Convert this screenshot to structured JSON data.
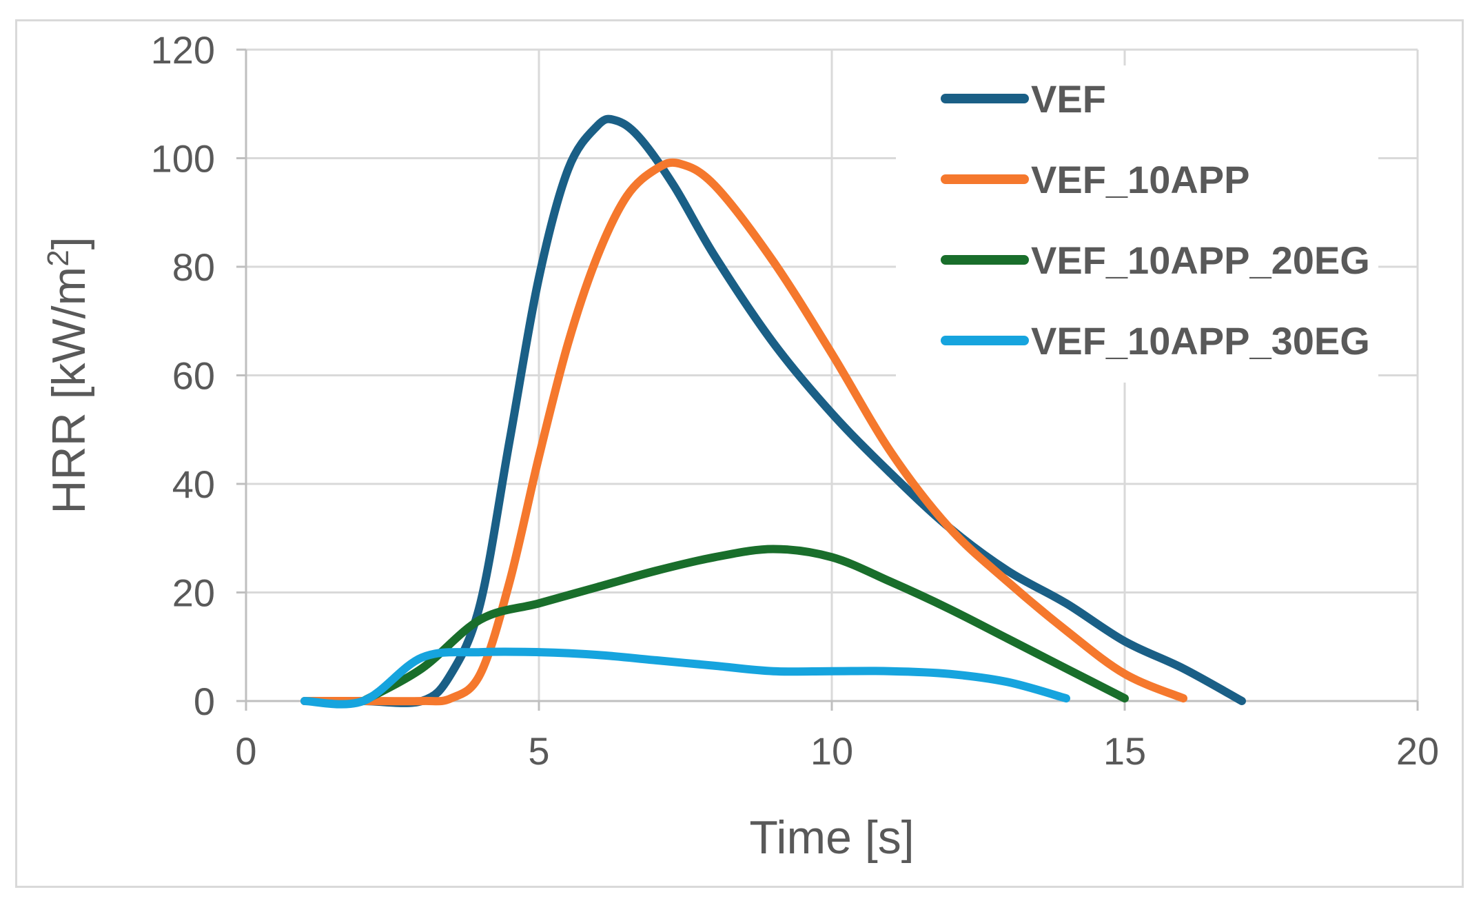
{
  "chart_data": {
    "type": "line",
    "title": "",
    "xlabel": "Time [s]",
    "ylabel": "HRR [kW/m²]",
    "xlim": [
      0,
      20
    ],
    "ylim": [
      0,
      120
    ],
    "xticks": [
      0,
      5,
      10,
      15,
      20
    ],
    "yticks": [
      0,
      20,
      40,
      60,
      80,
      100,
      120
    ],
    "grid": true,
    "legend_position": "top-right",
    "series": [
      {
        "name": "VEF",
        "color": "#1a5f86",
        "x": [
          1,
          2,
          3,
          3.5,
          4,
          4.5,
          5,
          5.5,
          6,
          6.3,
          6.7,
          7.3,
          8,
          9,
          10,
          11,
          12,
          13,
          14,
          15,
          16,
          17
        ],
        "y": [
          0,
          0,
          0,
          5,
          18,
          48,
          78,
          98,
          106,
          107,
          104,
          95,
          82,
          66,
          53,
          42,
          32,
          24,
          18,
          11,
          6,
          0
        ]
      },
      {
        "name": "VEF_10APP",
        "color": "#f5782d",
        "x": [
          1,
          2,
          3,
          3.5,
          4,
          4.5,
          5,
          5.5,
          6,
          6.5,
          7,
          7.4,
          8,
          9,
          10,
          11,
          12,
          13,
          14,
          15,
          16
        ],
        "y": [
          0,
          0,
          0,
          0.5,
          5,
          22,
          45,
          66,
          82,
          93,
          98,
          99,
          95,
          81,
          64,
          46,
          32,
          22,
          13,
          5,
          0.5
        ]
      },
      {
        "name": "VEF_10APP_20EG",
        "color": "#196e2b",
        "x": [
          2,
          3,
          4,
          5,
          6,
          7,
          8,
          9,
          10,
          11,
          12,
          13,
          14,
          15
        ],
        "y": [
          0,
          6,
          15,
          18,
          21,
          24,
          26.5,
          28,
          26.5,
          22,
          17,
          11.5,
          6,
          0.5
        ]
      },
      {
        "name": "VEF_10APP_30EG",
        "color": "#16a4de",
        "x": [
          1,
          2,
          3,
          4,
          5,
          6,
          7,
          8,
          9,
          10,
          11,
          12,
          13,
          14
        ],
        "y": [
          0,
          0,
          8,
          9,
          9,
          8.5,
          7.5,
          6.5,
          5.5,
          5.5,
          5.5,
          5,
          3.5,
          0.5
        ]
      }
    ]
  }
}
